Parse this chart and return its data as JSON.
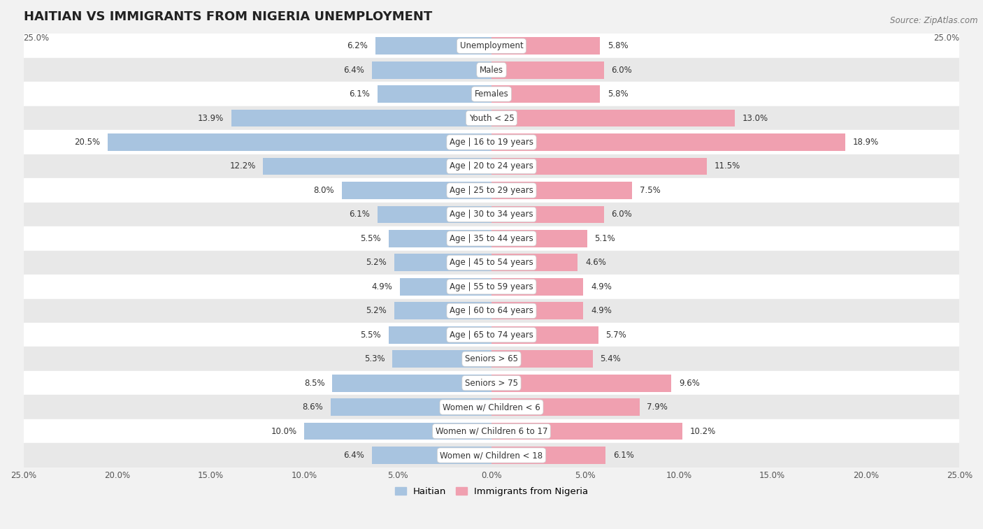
{
  "title": "HAITIAN VS IMMIGRANTS FROM NIGERIA UNEMPLOYMENT",
  "source": "Source: ZipAtlas.com",
  "categories": [
    "Unemployment",
    "Males",
    "Females",
    "Youth < 25",
    "Age | 16 to 19 years",
    "Age | 20 to 24 years",
    "Age | 25 to 29 years",
    "Age | 30 to 34 years",
    "Age | 35 to 44 years",
    "Age | 45 to 54 years",
    "Age | 55 to 59 years",
    "Age | 60 to 64 years",
    "Age | 65 to 74 years",
    "Seniors > 65",
    "Seniors > 75",
    "Women w/ Children < 6",
    "Women w/ Children 6 to 17",
    "Women w/ Children < 18"
  ],
  "haitian": [
    6.2,
    6.4,
    6.1,
    13.9,
    20.5,
    12.2,
    8.0,
    6.1,
    5.5,
    5.2,
    4.9,
    5.2,
    5.5,
    5.3,
    8.5,
    8.6,
    10.0,
    6.4
  ],
  "nigeria": [
    5.8,
    6.0,
    5.8,
    13.0,
    18.9,
    11.5,
    7.5,
    6.0,
    5.1,
    4.6,
    4.9,
    4.9,
    5.7,
    5.4,
    9.6,
    7.9,
    10.2,
    6.1
  ],
  "haitian_color": "#a8c4e0",
  "nigeria_color": "#f0a0b0",
  "haitian_highlight_color": "#7eadd4",
  "nigeria_highlight_color": "#e8687a",
  "xlim": 25.0,
  "bar_height": 0.72,
  "background_color": "#f2f2f2",
  "row_even_color": "#ffffff",
  "row_odd_color": "#e8e8e8",
  "legend_label_haitian": "Haitian",
  "legend_label_nigeria": "Immigrants from Nigeria",
  "title_fontsize": 13,
  "label_fontsize": 8.5,
  "tick_fontsize": 8.5,
  "value_fontsize": 8.5
}
